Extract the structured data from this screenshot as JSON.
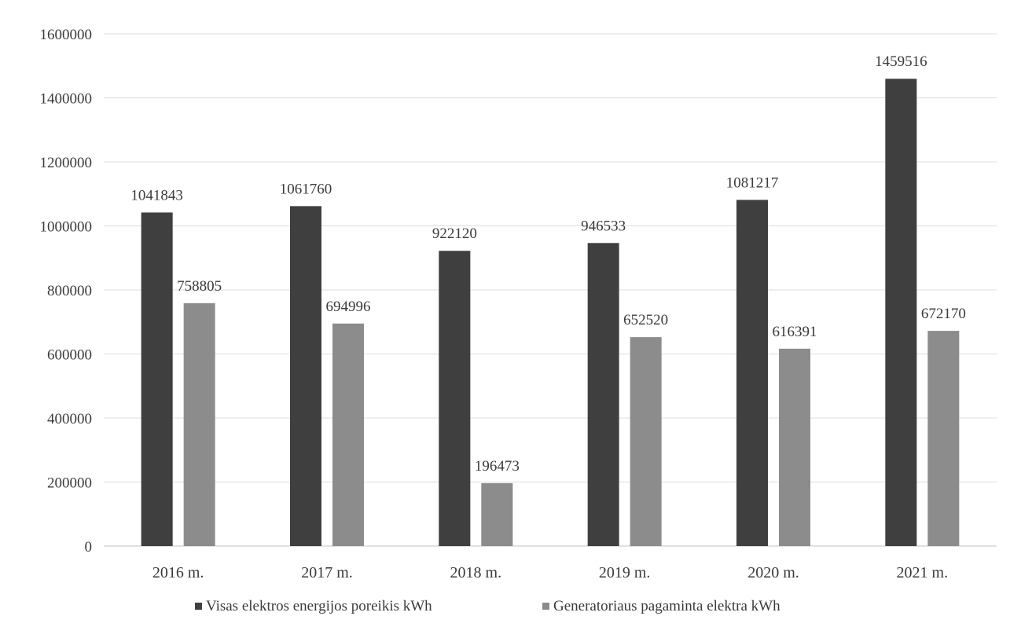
{
  "chart_data": {
    "type": "bar",
    "title": "",
    "xlabel": "",
    "ylabel": "",
    "categories": [
      "2016 m.",
      "2017 m.",
      "2018 m.",
      "2019 m.",
      "2020 m.",
      "2021 m."
    ],
    "series": [
      {
        "name": "Visas elektros energijos poreikis kWh",
        "color": "#3f3f3f",
        "values": [
          1041843,
          1061760,
          922120,
          946533,
          1081217,
          1459516
        ],
        "labels": [
          "1041843",
          "1061760",
          "922120",
          "946533",
          "1081217",
          "1459516"
        ]
      },
      {
        "name": "Generatoriaus pagaminta elektra kWh",
        "color": "#8c8c8c",
        "values": [
          758805,
          694996,
          196473,
          652520,
          616391,
          672170
        ],
        "labels": [
          "758805",
          "694996",
          "196473",
          "652520",
          "616391",
          "672170"
        ]
      }
    ],
    "ylim": [
      0,
      1600000
    ],
    "yticks": [
      0,
      200000,
      400000,
      600000,
      800000,
      1000000,
      1200000,
      1400000,
      1600000
    ],
    "ytick_labels": [
      "0",
      "200000",
      "400000",
      "600000",
      "800000",
      "1000000",
      "1200000",
      "1400000",
      "1600000"
    ],
    "grid": true,
    "legend_position": "bottom"
  }
}
